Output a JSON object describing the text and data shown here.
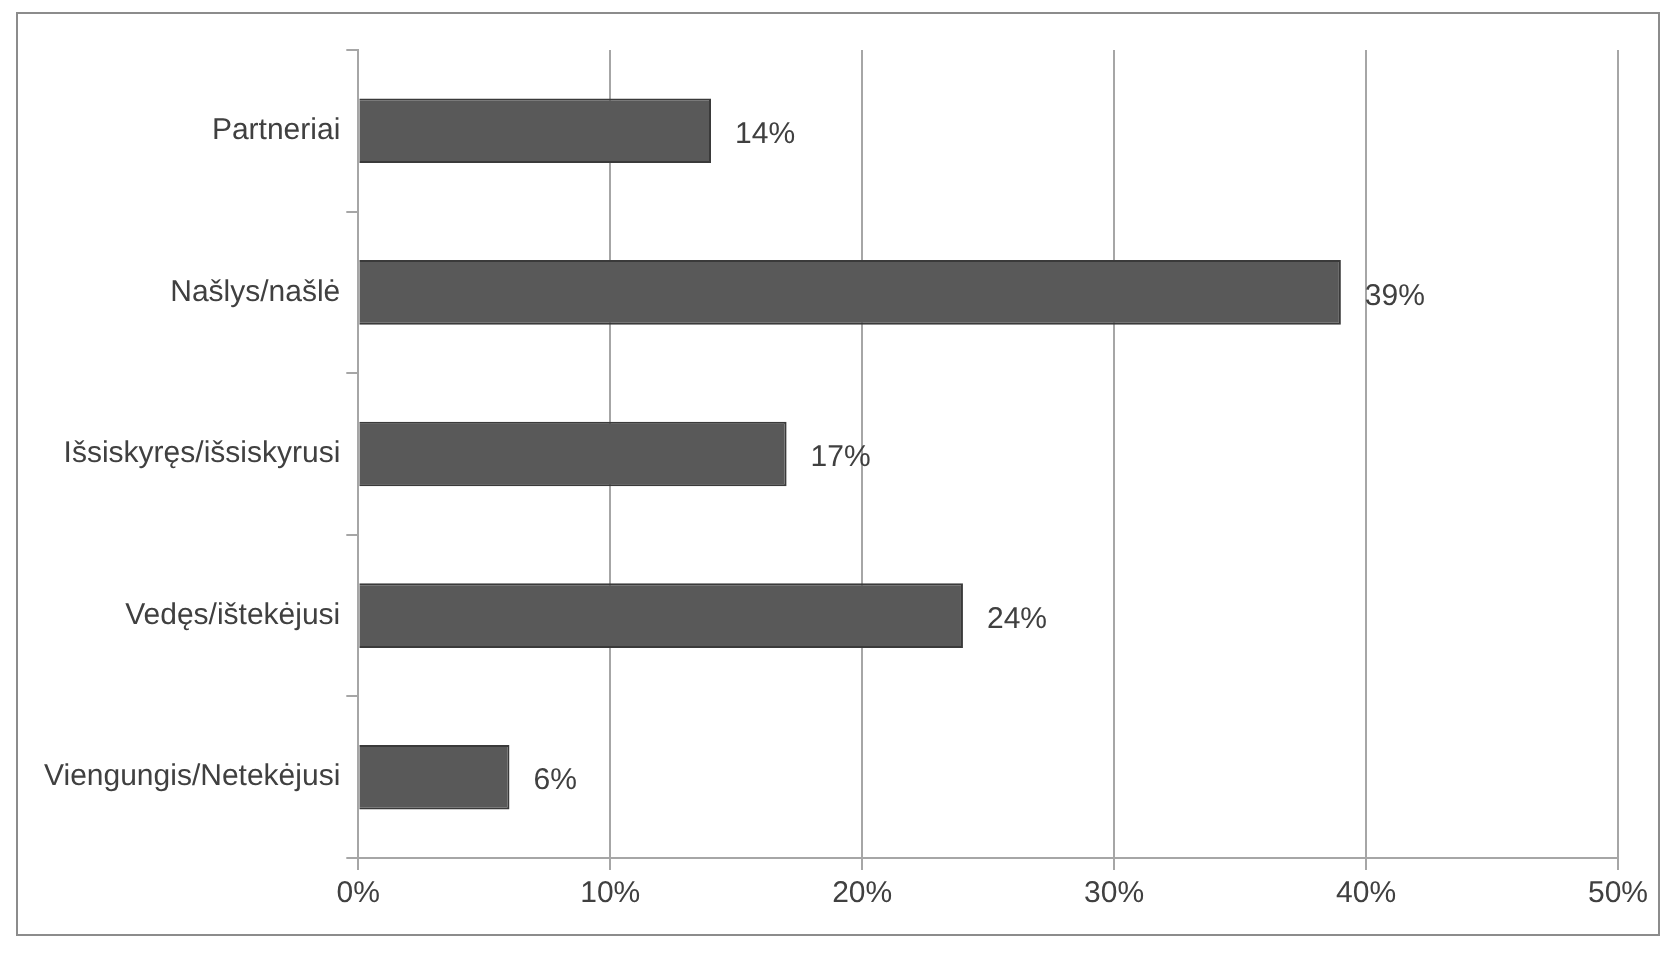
{
  "chart_data": {
    "type": "bar",
    "orientation": "horizontal",
    "categories": [
      "Partneriai",
      "Našlys/našlė",
      "Išsiskyręs/išsiskyrusi",
      "Vedęs/ištekėjusi",
      "Viengungis/Netekėjusi"
    ],
    "values": [
      14,
      39,
      17,
      24,
      6
    ],
    "value_labels": [
      "14%",
      "39%",
      "17%",
      "24%",
      "6%"
    ],
    "color": "#595959",
    "xlim": [
      0,
      50
    ],
    "xticks": [
      {
        "value": 0,
        "label": "0%"
      },
      {
        "value": 10,
        "label": "10%"
      },
      {
        "value": 20,
        "label": "20%"
      },
      {
        "value": 30,
        "label": "30%"
      },
      {
        "value": 40,
        "label": "40%"
      },
      {
        "value": 50,
        "label": "50%"
      }
    ],
    "grid": "x",
    "legend": false
  }
}
